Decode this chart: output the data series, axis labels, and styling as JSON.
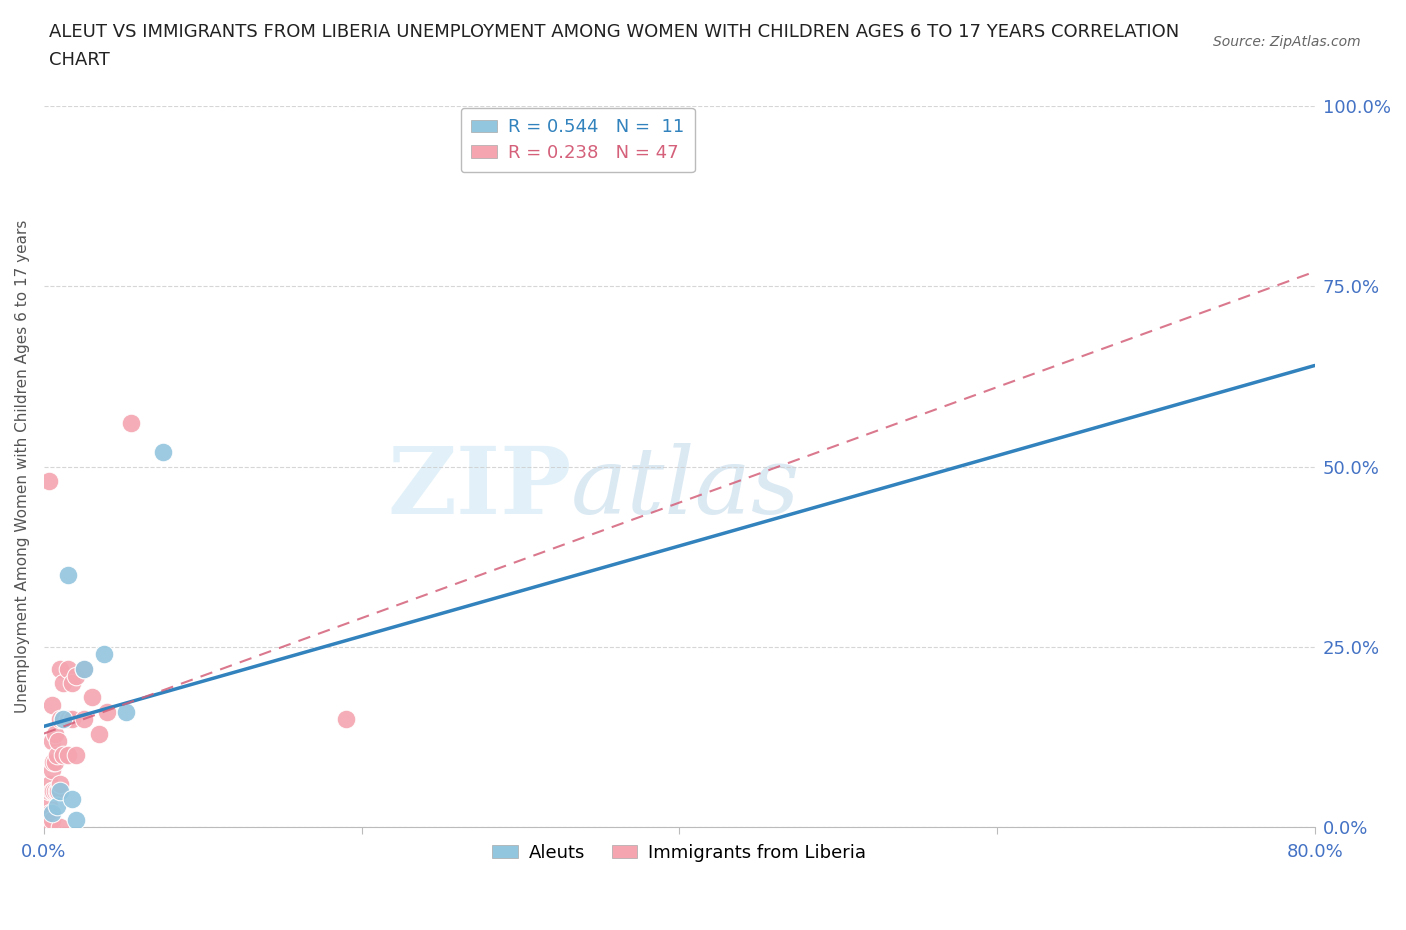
{
  "title_line1": "ALEUT VS IMMIGRANTS FROM LIBERIA UNEMPLOYMENT AMONG WOMEN WITH CHILDREN AGES 6 TO 17 YEARS CORRELATION",
  "title_line2": "CHART",
  "source": "Source: ZipAtlas.com",
  "ylabel": "Unemployment Among Women with Children Ages 6 to 17 years",
  "xlim": [
    0.0,
    0.8
  ],
  "ylim": [
    0.0,
    1.0
  ],
  "xticks": [
    0.0,
    0.2,
    0.4,
    0.6,
    0.8
  ],
  "yticks": [
    0.0,
    0.25,
    0.5,
    0.75,
    1.0
  ],
  "xtick_labels": [
    "0.0%",
    "",
    "",
    "",
    "80.0%"
  ],
  "ytick_labels": [
    "0.0%",
    "25.0%",
    "50.0%",
    "75.0%",
    "100.0%"
  ],
  "aleut_R": 0.544,
  "aleut_N": 11,
  "liberia_R": 0.238,
  "liberia_N": 47,
  "aleut_color": "#92c5de",
  "liberia_color": "#f4a5b0",
  "aleut_line_color": "#3182bd",
  "liberia_line_color": "#d4607a",
  "watermark_zip": "ZIP",
  "watermark_atlas": "atlas",
  "background_color": "#ffffff",
  "aleut_x": [
    0.005,
    0.008,
    0.01,
    0.012,
    0.015,
    0.018,
    0.02,
    0.025,
    0.038,
    0.052,
    0.075
  ],
  "aleut_y": [
    0.02,
    0.03,
    0.05,
    0.15,
    0.35,
    0.04,
    0.01,
    0.22,
    0.24,
    0.16,
    0.52
  ],
  "liberia_x": [
    0.002,
    0.002,
    0.002,
    0.003,
    0.003,
    0.003,
    0.003,
    0.004,
    0.004,
    0.004,
    0.005,
    0.005,
    0.005,
    0.005,
    0.005,
    0.005,
    0.006,
    0.006,
    0.007,
    0.007,
    0.007,
    0.008,
    0.008,
    0.009,
    0.009,
    0.01,
    0.01,
    0.01,
    0.01,
    0.012,
    0.012,
    0.012,
    0.015,
    0.015,
    0.015,
    0.018,
    0.018,
    0.02,
    0.02,
    0.025,
    0.025,
    0.03,
    0.035,
    0.04,
    0.055,
    0.19,
    0.003
  ],
  "liberia_y": [
    0.0,
    0.01,
    0.02,
    0.0,
    0.01,
    0.03,
    0.05,
    0.0,
    0.02,
    0.06,
    0.0,
    0.01,
    0.05,
    0.08,
    0.12,
    0.17,
    0.05,
    0.09,
    0.05,
    0.09,
    0.13,
    0.05,
    0.1,
    0.05,
    0.12,
    0.0,
    0.06,
    0.15,
    0.22,
    0.1,
    0.15,
    0.2,
    0.1,
    0.15,
    0.22,
    0.15,
    0.2,
    0.1,
    0.21,
    0.15,
    0.22,
    0.18,
    0.13,
    0.16,
    0.56,
    0.15,
    0.48
  ],
  "aleut_line_x0": 0.0,
  "aleut_line_y0": 0.14,
  "aleut_line_x1": 0.8,
  "aleut_line_y1": 0.64,
  "liberia_line_x0": 0.0,
  "liberia_line_y0": 0.13,
  "liberia_line_x1": 0.8,
  "liberia_line_y1": 0.77
}
